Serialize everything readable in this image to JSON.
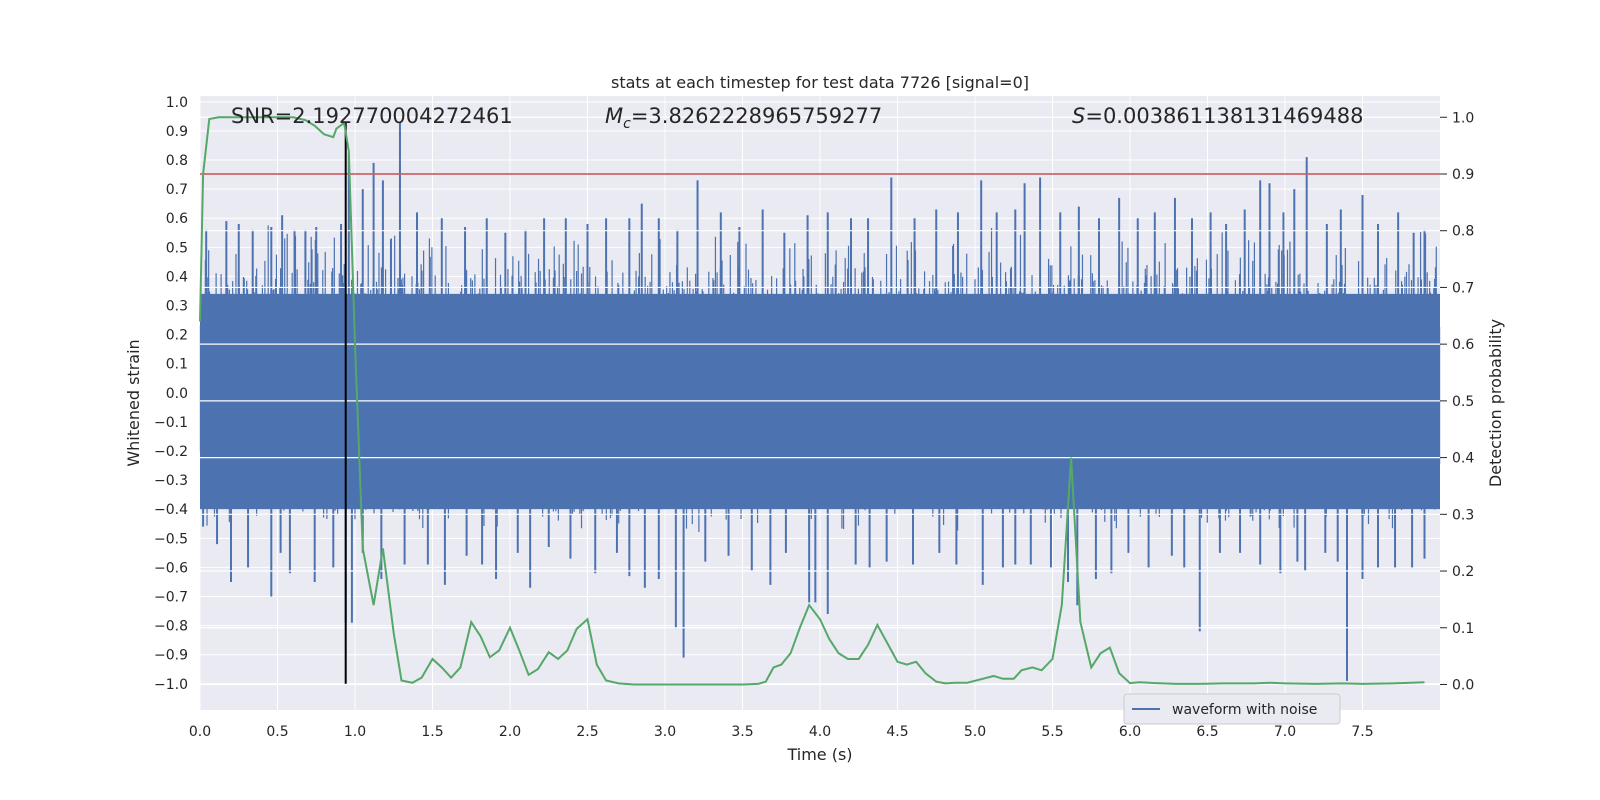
{
  "chart_data": {
    "type": "line",
    "title": "stats at each timestep for test data 7726 [signal=0]",
    "xlabel": "Time (s)",
    "ylabel_left": "Whitened strain",
    "ylabel_right": "Detection probability",
    "xlim": [
      0,
      8.0
    ],
    "ylim_left": [
      -1.09,
      1.02
    ],
    "ylim_right": [
      -0.045,
      1.0375
    ],
    "grid": true,
    "x_ticks": [
      "0.0",
      "0.5",
      "1.0",
      "1.5",
      "2.0",
      "2.5",
      "3.0",
      "3.5",
      "4.0",
      "4.5",
      "5.0",
      "5.5",
      "6.0",
      "6.5",
      "7.0",
      "7.5"
    ],
    "y_left_ticks": [
      "1.0",
      "0.9",
      "0.8",
      "0.7",
      "0.6",
      "0.5",
      "0.4",
      "0.3",
      "0.2",
      "0.1",
      "0.0",
      "−0.1",
      "−0.2",
      "−0.3",
      "−0.4",
      "−0.5",
      "−0.6",
      "−0.7",
      "−0.8",
      "−0.9",
      "−1.0"
    ],
    "y_right_ticks": [
      "1.0",
      "0.9",
      "0.8",
      "0.7",
      "0.6",
      "0.5",
      "0.4",
      "0.3",
      "0.2",
      "0.1",
      "0.0"
    ],
    "annotations": {
      "snr": "SNR=2.192770004272461",
      "mc_symbol": "M",
      "mc_sub": "c",
      "mc_value": "=3.8262228965759277",
      "s_symbol": "S",
      "s_value": "=0.003861138131469488"
    },
    "threshold": 0.9,
    "event_time": 0.94,
    "legend": [
      "waveform with noise"
    ],
    "colors": {
      "waveform": "#4c72b0",
      "probability": "#55a868",
      "threshold": "#c44e52",
      "event_line": "#000000",
      "plot_bg": "#eaeaf2",
      "grid": "#ffffff"
    },
    "series": [
      {
        "name": "waveform with noise",
        "axis": "left",
        "description": "dense whitened strain noise, mostly within ±0.45 with spikes",
        "spikes_up": [
          [
            0.04,
            0.56
          ],
          [
            0.17,
            0.59
          ],
          [
            0.25,
            0.58
          ],
          [
            0.34,
            0.56
          ],
          [
            0.46,
            0.57
          ],
          [
            0.53,
            0.61
          ],
          [
            0.61,
            0.56
          ],
          [
            0.68,
            0.56
          ],
          [
            0.75,
            0.57
          ],
          [
            0.91,
            0.58
          ],
          [
            0.96,
            0.82
          ],
          [
            1.05,
            0.7
          ],
          [
            1.12,
            0.79
          ],
          [
            1.18,
            0.73
          ],
          [
            1.29,
            0.93
          ],
          [
            1.4,
            0.62
          ],
          [
            1.56,
            0.6
          ],
          [
            1.71,
            0.57
          ],
          [
            1.85,
            0.6
          ],
          [
            1.97,
            0.55
          ],
          [
            2.1,
            0.56
          ],
          [
            2.22,
            0.6
          ],
          [
            2.36,
            0.6
          ],
          [
            2.5,
            0.58
          ],
          [
            2.62,
            0.6
          ],
          [
            2.77,
            0.6
          ],
          [
            2.85,
            0.65
          ],
          [
            2.96,
            0.6
          ],
          [
            3.08,
            0.56
          ],
          [
            3.21,
            0.73
          ],
          [
            3.36,
            0.62
          ],
          [
            3.48,
            0.57
          ],
          [
            3.63,
            0.63
          ],
          [
            3.77,
            0.55
          ],
          [
            3.92,
            0.61
          ],
          [
            4.05,
            0.62
          ],
          [
            4.2,
            0.6
          ],
          [
            4.31,
            0.6
          ],
          [
            4.46,
            0.74
          ],
          [
            4.61,
            0.6
          ],
          [
            4.75,
            0.63
          ],
          [
            4.89,
            0.62
          ],
          [
            5.04,
            0.73
          ],
          [
            5.14,
            0.62
          ],
          [
            5.26,
            0.63
          ],
          [
            5.32,
            0.72
          ],
          [
            5.42,
            0.74
          ],
          [
            5.55,
            0.62
          ],
          [
            5.67,
            0.64
          ],
          [
            5.8,
            0.6
          ],
          [
            5.93,
            0.67
          ],
          [
            6.05,
            0.6
          ],
          [
            6.16,
            0.62
          ],
          [
            6.29,
            0.67
          ],
          [
            6.4,
            0.6
          ],
          [
            6.52,
            0.62
          ],
          [
            6.62,
            0.58
          ],
          [
            6.74,
            0.63
          ],
          [
            6.84,
            0.73
          ],
          [
            6.9,
            0.72
          ],
          [
            6.99,
            0.62
          ],
          [
            7.06,
            0.7
          ],
          [
            7.14,
            0.81
          ],
          [
            7.27,
            0.58
          ],
          [
            7.36,
            0.63
          ],
          [
            7.5,
            0.68
          ],
          [
            7.6,
            0.58
          ],
          [
            7.73,
            0.62
          ],
          [
            7.83,
            0.55
          ],
          [
            7.9,
            0.56
          ]
        ],
        "spikes_down": [
          [
            0.02,
            -0.46
          ],
          [
            0.11,
            -0.52
          ],
          [
            0.2,
            -0.65
          ],
          [
            0.31,
            -0.6
          ],
          [
            0.46,
            -0.7
          ],
          [
            0.52,
            -0.55
          ],
          [
            0.58,
            -0.62
          ],
          [
            0.74,
            -0.65
          ],
          [
            0.86,
            -0.6
          ],
          [
            0.94,
            -0.79
          ],
          [
            0.98,
            -0.79
          ],
          [
            1.05,
            -0.55
          ],
          [
            1.17,
            -0.64
          ],
          [
            1.32,
            -0.59
          ],
          [
            1.47,
            -0.59
          ],
          [
            1.58,
            -0.66
          ],
          [
            1.72,
            -0.56
          ],
          [
            1.82,
            -0.59
          ],
          [
            1.91,
            -0.64
          ],
          [
            2.05,
            -0.55
          ],
          [
            2.13,
            -0.67
          ],
          [
            2.25,
            -0.53
          ],
          [
            2.39,
            -0.57
          ],
          [
            2.55,
            -0.62
          ],
          [
            2.69,
            -0.55
          ],
          [
            2.77,
            -0.63
          ],
          [
            2.87,
            -0.67
          ],
          [
            2.96,
            -0.64
          ],
          [
            3.07,
            -0.81
          ],
          [
            3.12,
            -0.91
          ],
          [
            3.26,
            -0.58
          ],
          [
            3.41,
            -0.56
          ],
          [
            3.56,
            -0.61
          ],
          [
            3.68,
            -0.66
          ],
          [
            3.78,
            -0.55
          ],
          [
            3.93,
            -0.72
          ],
          [
            3.97,
            -0.72
          ],
          [
            4.05,
            -0.76
          ],
          [
            4.23,
            -0.59
          ],
          [
            4.32,
            -0.6
          ],
          [
            4.43,
            -0.58
          ],
          [
            4.6,
            -0.59
          ],
          [
            4.77,
            -0.55
          ],
          [
            4.88,
            -0.59
          ],
          [
            5.05,
            -0.66
          ],
          [
            5.18,
            -0.6
          ],
          [
            5.26,
            -0.59
          ],
          [
            5.36,
            -0.59
          ],
          [
            5.49,
            -0.6
          ],
          [
            5.6,
            -0.65
          ],
          [
            5.66,
            -0.73
          ],
          [
            5.78,
            -0.64
          ],
          [
            5.88,
            -0.62
          ],
          [
            5.99,
            -0.55
          ],
          [
            6.12,
            -0.6
          ],
          [
            6.27,
            -0.56
          ],
          [
            6.35,
            -0.6
          ],
          [
            6.45,
            -0.82
          ],
          [
            6.58,
            -0.55
          ],
          [
            6.71,
            -0.55
          ],
          [
            6.84,
            -0.59
          ],
          [
            6.97,
            -0.62
          ],
          [
            7.08,
            -0.58
          ],
          [
            7.13,
            -0.61
          ],
          [
            7.26,
            -0.55
          ],
          [
            7.34,
            -0.58
          ],
          [
            7.4,
            -0.99
          ],
          [
            7.5,
            -0.64
          ],
          [
            7.6,
            -0.6
          ],
          [
            7.71,
            -0.6
          ],
          [
            7.82,
            -0.6
          ],
          [
            7.9,
            -0.57
          ]
        ]
      },
      {
        "name": "detection probability",
        "axis": "right",
        "x": [
          0.0,
          0.02,
          0.06,
          0.12,
          0.2,
          0.3,
          0.4,
          0.5,
          0.6,
          0.68,
          0.74,
          0.8,
          0.86,
          0.88,
          0.93,
          0.96,
          1.0,
          1.05,
          1.12,
          1.18,
          1.25,
          1.3,
          1.37,
          1.43,
          1.5,
          1.56,
          1.62,
          1.68,
          1.75,
          1.81,
          1.87,
          1.93,
          2.0,
          2.06,
          2.12,
          2.18,
          2.25,
          2.31,
          2.37,
          2.43,
          2.5,
          2.56,
          2.62,
          2.7,
          2.8,
          2.95,
          3.2,
          3.5,
          3.6,
          3.65,
          3.7,
          3.75,
          3.81,
          3.87,
          3.93,
          4.0,
          4.06,
          4.12,
          4.18,
          4.25,
          4.31,
          4.37,
          4.44,
          4.5,
          4.56,
          4.62,
          4.68,
          4.75,
          4.81,
          4.87,
          4.95,
          5.05,
          5.12,
          5.18,
          5.25,
          5.3,
          5.37,
          5.43,
          5.5,
          5.56,
          5.62,
          5.68,
          5.75,
          5.81,
          5.87,
          5.93,
          6.0,
          6.06,
          6.15,
          6.3,
          6.45,
          6.6,
          6.8,
          6.9,
          7.0,
          7.2,
          7.37,
          7.5,
          7.7,
          7.9
        ],
        "y": [
          0.64,
          0.9,
          0.997,
          1.0,
          1.0,
          1.0,
          1.0,
          1.0,
          1.0,
          0.995,
          0.985,
          0.97,
          0.965,
          0.98,
          0.99,
          0.94,
          0.6,
          0.24,
          0.14,
          0.24,
          0.09,
          0.007,
          0.003,
          0.012,
          0.045,
          0.03,
          0.012,
          0.03,
          0.11,
          0.085,
          0.048,
          0.06,
          0.1,
          0.06,
          0.017,
          0.027,
          0.057,
          0.045,
          0.06,
          0.098,
          0.115,
          0.035,
          0.007,
          0.002,
          0.0,
          0.0,
          0.0,
          0.0,
          0.001,
          0.005,
          0.03,
          0.035,
          0.055,
          0.1,
          0.14,
          0.115,
          0.08,
          0.055,
          0.045,
          0.045,
          0.07,
          0.105,
          0.07,
          0.04,
          0.035,
          0.04,
          0.02,
          0.005,
          0.002,
          0.003,
          0.003,
          0.01,
          0.015,
          0.01,
          0.01,
          0.025,
          0.03,
          0.025,
          0.045,
          0.14,
          0.4,
          0.11,
          0.03,
          0.055,
          0.065,
          0.02,
          0.0025,
          0.004,
          0.0025,
          0.001,
          0.001,
          0.002,
          0.002,
          0.003,
          0.002,
          0.001,
          0.002,
          0.001,
          0.002,
          0.004
        ]
      }
    ]
  }
}
